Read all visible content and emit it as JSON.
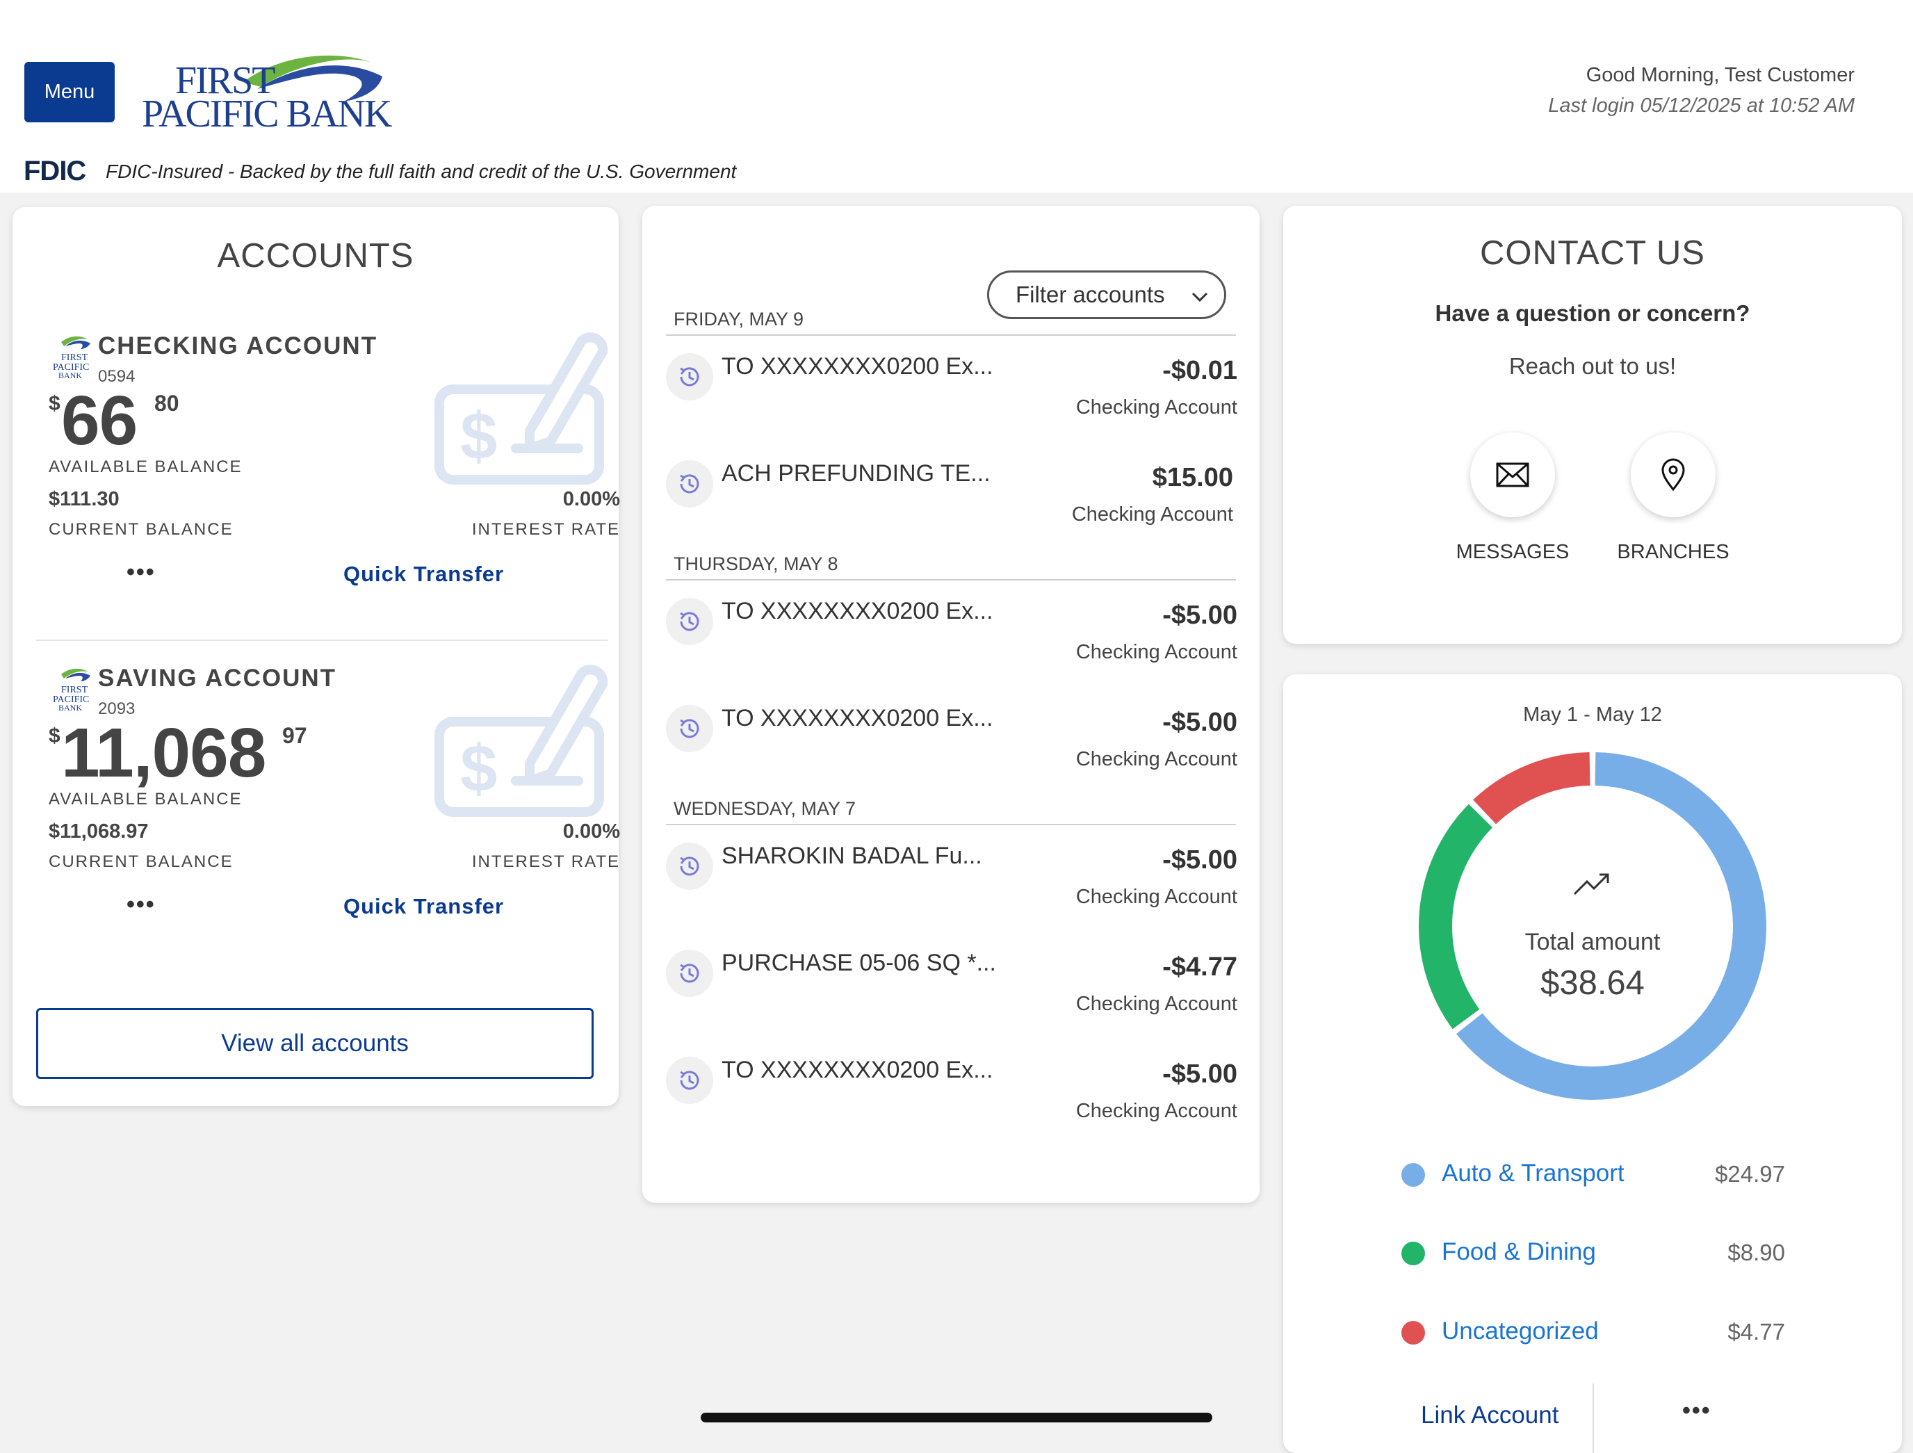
{
  "header": {
    "menu_label": "Menu",
    "logo_line1": "FIRST",
    "logo_line2": "PACIFIC BANK",
    "greeting": "Good Morning, Test Customer",
    "last_login": "Last login 05/12/2025 at 10:52 AM",
    "fdic_logo": "FDIC",
    "fdic_text": "FDIC-Insured - Backed by the full faith and credit of the U.S. Government"
  },
  "accounts": {
    "title": "ACCOUNTS",
    "items": [
      {
        "name": "CHECKING ACCOUNT",
        "number": "0594",
        "currency": "$",
        "balance_whole": "66",
        "balance_cents": "80",
        "available_label": "AVAILABLE BALANCE",
        "current_balance": "$111.30",
        "current_label": "CURRENT BALANCE",
        "interest_rate": "0.00%",
        "interest_label": "INTEREST RATE",
        "more": "•••",
        "quick_transfer": "Quick Transfer"
      },
      {
        "name": "SAVING ACCOUNT",
        "number": "2093",
        "currency": "$",
        "balance_whole": "11,068",
        "balance_cents": "97",
        "available_label": "AVAILABLE BALANCE",
        "current_balance": "$11,068.97",
        "current_label": "CURRENT BALANCE",
        "interest_rate": "0.00%",
        "interest_label": "INTEREST RATE",
        "more": "•••",
        "quick_transfer": "Quick Transfer"
      }
    ],
    "view_all": "View all accounts"
  },
  "transactions": {
    "filter_label": "Filter accounts",
    "days": [
      {
        "label": "FRIDAY, MAY 9",
        "items": [
          {
            "desc": "TO XXXXXXXX0200 Ex...",
            "amount": "-$0.01",
            "account": "Checking Account"
          },
          {
            "desc": "ACH PREFUNDING TE...",
            "amount": "$15.00",
            "account": "Checking Account"
          }
        ]
      },
      {
        "label": "THURSDAY, MAY 8",
        "items": [
          {
            "desc": "TO XXXXXXXX0200 Ex...",
            "amount": "-$5.00",
            "account": "Checking Account"
          },
          {
            "desc": "TO XXXXXXXX0200 Ex...",
            "amount": "-$5.00",
            "account": "Checking Account"
          }
        ]
      },
      {
        "label": "WEDNESDAY, MAY 7",
        "items": [
          {
            "desc": "SHAROKIN BADAL Fu...",
            "amount": "-$5.00",
            "account": "Checking Account"
          },
          {
            "desc": "PURCHASE 05-06 SQ *...",
            "amount": "-$4.77",
            "account": "Checking Account"
          },
          {
            "desc": "TO XXXXXXXX0200 Ex...",
            "amount": "-$5.00",
            "account": "Checking Account"
          }
        ]
      }
    ]
  },
  "contact": {
    "title": "CONTACT US",
    "question": "Have a question or concern?",
    "reach": "Reach out to us!",
    "messages_label": "MESSAGES",
    "branches_label": "BRANCHES"
  },
  "spending": {
    "range": "May 1 - May 12",
    "total_label": "Total amount",
    "total_amount": "$38.64",
    "categories": [
      {
        "name": "Auto & Transport",
        "amount": "$24.97",
        "color": "#78aee8"
      },
      {
        "name": "Food & Dining",
        "amount": "$8.90",
        "color": "#22b569"
      },
      {
        "name": "Uncategorized",
        "amount": "$4.77",
        "color": "#e05252"
      }
    ],
    "link_account": "Link Account",
    "more": "•••"
  },
  "colors": {
    "brand_blue": "#0b3a91",
    "link_blue": "#1a74d2",
    "background": "#f2f2f2"
  },
  "chart_data": {
    "type": "pie",
    "categories": [
      "Auto & Transport",
      "Food & Dining",
      "Uncategorized"
    ],
    "values": [
      24.97,
      8.9,
      4.77
    ],
    "title": "",
    "total": 38.64
  }
}
